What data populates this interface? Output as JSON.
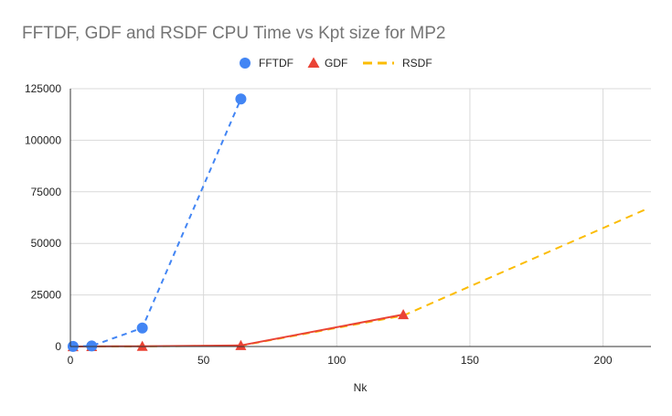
{
  "chart_data": {
    "type": "scatter",
    "title": "FFTDF, GDF and RSDF CPU Time vs Kpt size for MP2",
    "xlabel": "Nk",
    "ylabel": "",
    "xlim": [
      0,
      218
    ],
    "ylim": [
      0,
      125000
    ],
    "x_ticks": [
      "0",
      "50",
      "100",
      "150",
      "200"
    ],
    "y_ticks": [
      "0",
      "25000",
      "50000",
      "75000",
      "100000",
      "125000"
    ],
    "grid": true,
    "legend_position": "top",
    "series": [
      {
        "name": "FFTDF",
        "marker": "circle",
        "line": "dashed",
        "color": "#4285f4",
        "points": [
          [
            1,
            60
          ],
          [
            8,
            250
          ],
          [
            27,
            9000
          ],
          [
            64,
            120000
          ]
        ]
      },
      {
        "name": "GDF",
        "marker": "triangle",
        "line": "solid",
        "color": "#ea4335",
        "points": [
          [
            1,
            10
          ],
          [
            8,
            60
          ],
          [
            27,
            150
          ],
          [
            64,
            550
          ],
          [
            125,
            15500
          ]
        ]
      },
      {
        "name": "RSDF",
        "marker": "none",
        "line": "dashed",
        "color": "#fbbc04",
        "points": [
          [
            1,
            5
          ],
          [
            8,
            40
          ],
          [
            27,
            100
          ],
          [
            64,
            400
          ],
          [
            125,
            15000
          ],
          [
            216,
            66500
          ]
        ]
      }
    ]
  }
}
